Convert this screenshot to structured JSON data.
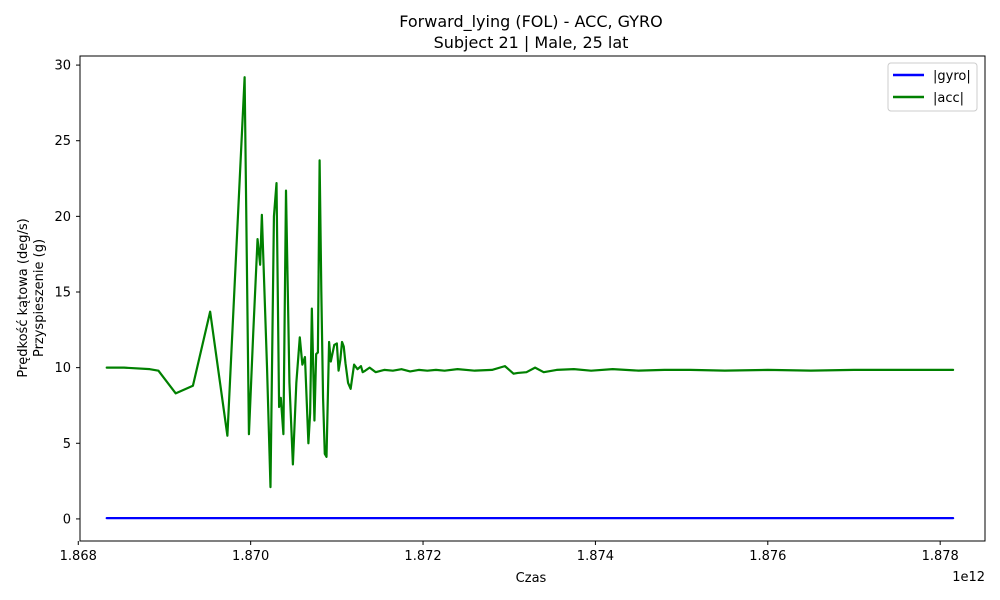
{
  "chart_data": {
    "type": "line",
    "title": "Forward_lying (FOL) - ACC, GYRO",
    "subtitle": "Subject 21 | Male, 25 lat",
    "xlabel": "Czas",
    "ylabel_lines": [
      "Prędkość kątowa (deg/s)",
      "Przyspieszenie (g)"
    ],
    "x_offset_label": "1e12",
    "xlim": [
      1.86802,
      1.87852
    ],
    "ylim": [
      -1.46,
      30.6
    ],
    "xticks": [
      1.868,
      1.87,
      1.872,
      1.874,
      1.876,
      1.878
    ],
    "xtick_labels": [
      "1.868",
      "1.870",
      "1.872",
      "1.874",
      "1.876",
      "1.878"
    ],
    "yticks": [
      0,
      5,
      10,
      15,
      20,
      25,
      30
    ],
    "ytick_labels": [
      "0",
      "5",
      "10",
      "15",
      "20",
      "25",
      "30"
    ],
    "grid": false,
    "legend_position": "upper-right",
    "series": [
      {
        "name": "|gyro|",
        "color": "#0000ff",
        "x": [
          1.86833,
          1.87815
        ],
        "y": [
          0.05,
          0.05
        ]
      },
      {
        "name": "|acc|",
        "color": "#008000",
        "x": [
          1.86833,
          1.86853,
          1.86883,
          1.86893,
          1.86913,
          1.86933,
          1.86953,
          1.86973,
          1.86993,
          1.86998,
          1.87003,
          1.87008,
          1.87011,
          1.87013,
          1.87019,
          1.87023,
          1.87027,
          1.8703,
          1.87033,
          1.87035,
          1.87038,
          1.87041,
          1.87045,
          1.87049,
          1.87053,
          1.87057,
          1.8706,
          1.87063,
          1.87067,
          1.87069,
          1.87071,
          1.87074,
          1.87076,
          1.87078,
          1.8708,
          1.87082,
          1.87084,
          1.87086,
          1.87088,
          1.87091,
          1.87093,
          1.87097,
          1.871,
          1.87102,
          1.87104,
          1.87106,
          1.87108,
          1.8711,
          1.87113,
          1.87116,
          1.8712,
          1.87124,
          1.87128,
          1.8713,
          1.87133,
          1.87138,
          1.87145,
          1.87155,
          1.87165,
          1.87175,
          1.87185,
          1.87195,
          1.87205,
          1.87215,
          1.87225,
          1.8724,
          1.8726,
          1.8728,
          1.87295,
          1.87305,
          1.8731,
          1.8732,
          1.8733,
          1.8734,
          1.87355,
          1.87375,
          1.87395,
          1.8742,
          1.8745,
          1.8748,
          1.8751,
          1.8755,
          1.876,
          1.8765,
          1.877,
          1.8775,
          1.878,
          1.87815
        ],
        "y": [
          10.0,
          10.0,
          9.9,
          9.8,
          8.3,
          8.8,
          13.7,
          5.5,
          29.2,
          5.6,
          12.3,
          18.5,
          16.8,
          20.1,
          10.0,
          2.1,
          20.0,
          22.2,
          7.4,
          8.0,
          5.6,
          21.7,
          9.0,
          3.6,
          9.0,
          12.0,
          10.2,
          10.7,
          5.0,
          7.0,
          13.9,
          6.5,
          10.9,
          11.0,
          23.7,
          15.0,
          8.0,
          4.3,
          4.1,
          11.7,
          10.4,
          11.5,
          11.6,
          9.8,
          10.5,
          11.7,
          11.4,
          10.3,
          9.0,
          8.6,
          10.2,
          9.9,
          10.1,
          9.7,
          9.8,
          10.0,
          9.7,
          9.85,
          9.8,
          9.9,
          9.75,
          9.85,
          9.8,
          9.85,
          9.8,
          9.9,
          9.8,
          9.85,
          10.1,
          9.6,
          9.65,
          9.7,
          10.0,
          9.7,
          9.85,
          9.9,
          9.8,
          9.9,
          9.8,
          9.85,
          9.85,
          9.8,
          9.85,
          9.8,
          9.85,
          9.85,
          9.85,
          9.85
        ]
      }
    ]
  }
}
